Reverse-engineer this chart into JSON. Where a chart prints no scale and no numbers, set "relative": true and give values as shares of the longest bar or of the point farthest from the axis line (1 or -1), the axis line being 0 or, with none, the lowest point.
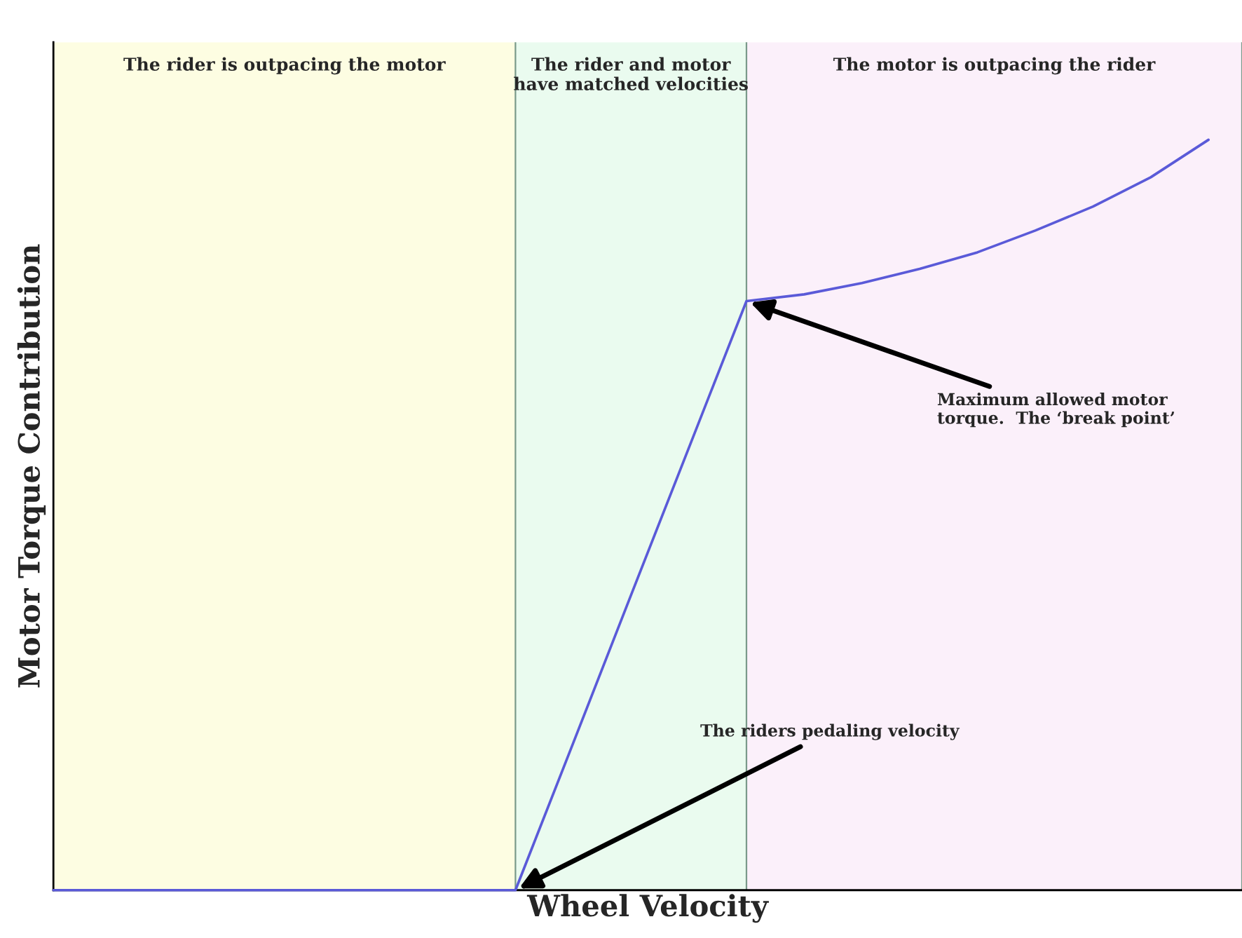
{
  "chart_data": {
    "type": "line",
    "relative": true,
    "xlabel": "Wheel Velocity",
    "ylabel": "Motor Torque Contribution",
    "categories": [
      null,
      null,
      null,
      null,
      null,
      null,
      null,
      null,
      null,
      null,
      null,
      null,
      null,
      null,
      null,
      null,
      null,
      null,
      null,
      null,
      null
    ],
    "series": [
      {
        "color": "#5a5ad8",
        "values": [
          0,
          0,
          0,
          0,
          0,
          0,
          0,
          0,
          0,
          0.196,
          0.393,
          0.589,
          0.785,
          0.794,
          0.809,
          0.828,
          0.85,
          0.879,
          0.911,
          0.95,
          1.0
        ]
      }
    ],
    "annotations": [
      "The rider is outpacing the motor",
      "The rider and motor\nhave matched velocities",
      "The motor is outpacing the rider",
      "Maximum allowed motor\ntorque.  The ‘break point’",
      "The riders pedaling velocity"
    ],
    "legend": false,
    "marker": "none",
    "line_style": "solid"
  }
}
